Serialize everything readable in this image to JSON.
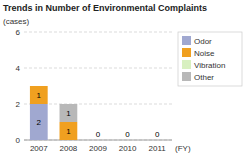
{
  "chart_data": {
    "type": "bar",
    "stacked": true,
    "title": "Trends in Number of Environmental Complaints",
    "ylabel": "(cases)",
    "xlabel": "(FY)",
    "categories": [
      "2007",
      "2008",
      "2009",
      "2010",
      "2011"
    ],
    "series": [
      {
        "name": "Odor",
        "color": "#a0a8d0",
        "values": [
          2,
          0,
          0,
          0,
          0
        ]
      },
      {
        "name": "Noise",
        "color": "#f0a020",
        "values": [
          1,
          1,
          0,
          0,
          0
        ]
      },
      {
        "name": "Vibration",
        "color": "#d8f0c0",
        "values": [
          0,
          0,
          0,
          0,
          0
        ]
      },
      {
        "name": "Other",
        "color": "#b8b8b8",
        "values": [
          0,
          1,
          0,
          0,
          0
        ]
      }
    ],
    "ylim": [
      0,
      6
    ],
    "yticks": [
      0,
      2,
      4,
      6
    ],
    "grid": true,
    "legend": "right",
    "data_labels": true
  }
}
